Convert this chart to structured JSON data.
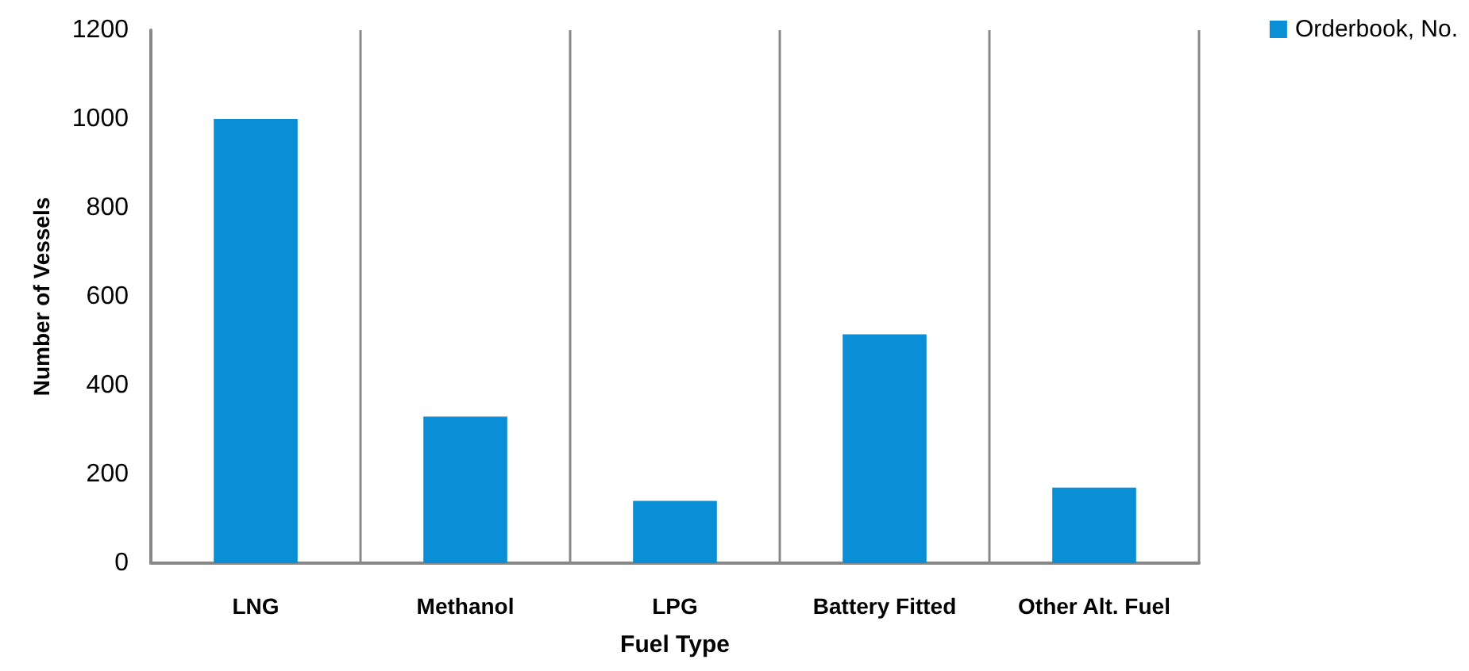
{
  "chart_data": {
    "type": "bar",
    "xlabel": "Fuel Type",
    "ylabel": "Number of Vessels",
    "categories": [
      "LNG",
      "Methanol",
      "LPG",
      "Battery Fitted",
      "Other Alt. Fuel"
    ],
    "series": [
      {
        "name": "Orderbook, No.",
        "color": "#0a8fd6",
        "values": [
          1000,
          330,
          140,
          515,
          170
        ]
      }
    ],
    "ylim": [
      0,
      1200
    ],
    "yticks": [
      0,
      200,
      400,
      600,
      800,
      1000,
      1200
    ],
    "grid": "x",
    "legend": "top right"
  }
}
